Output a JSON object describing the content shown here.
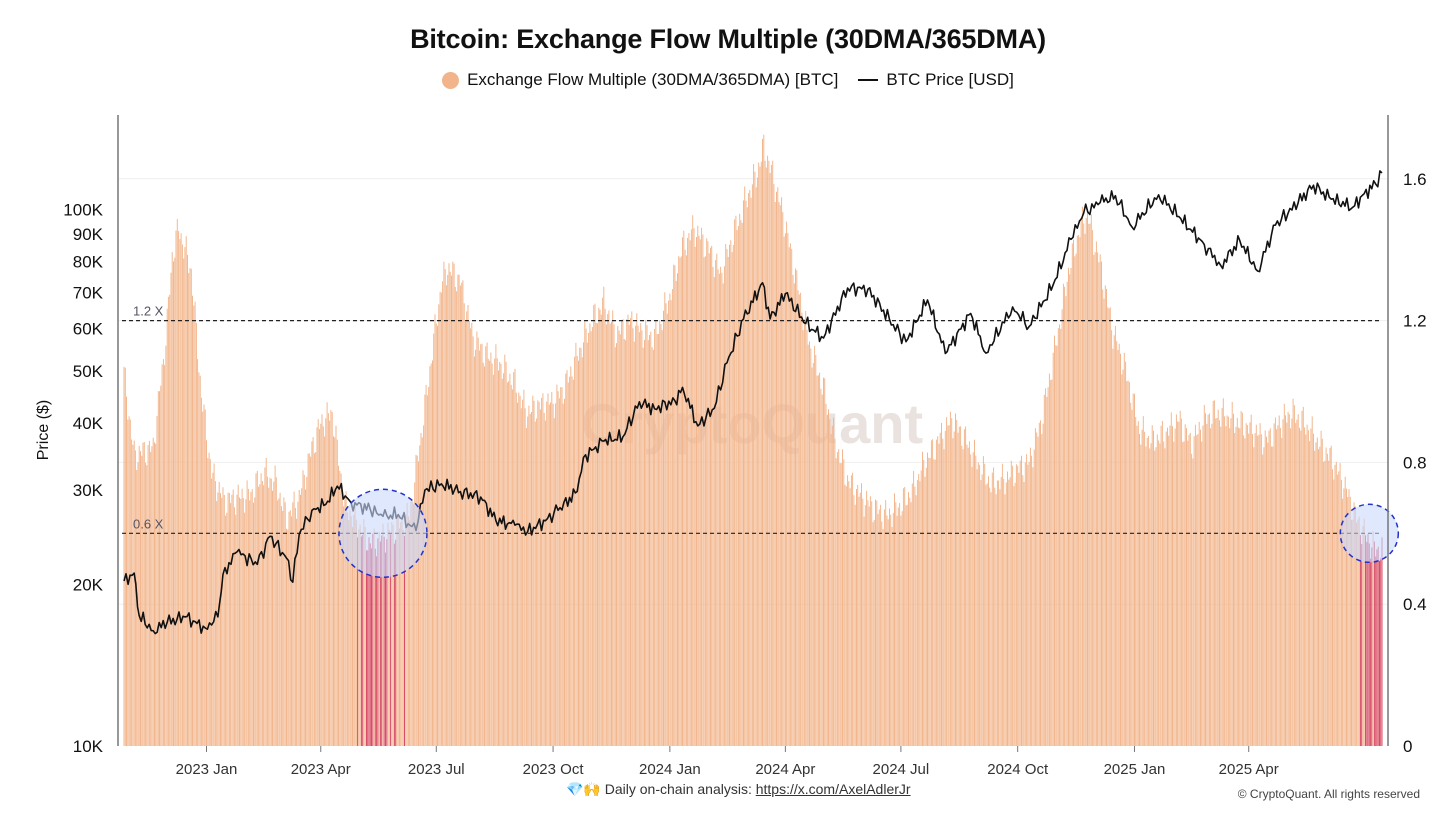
{
  "title": "Bitcoin: Exchange Flow Multiple (30DMA/365DMA)",
  "legend": {
    "flow_label": "Exchange Flow Multiple (30DMA/365DMA) [BTC]",
    "price_label": "BTC Price [USD]"
  },
  "footer": {
    "icons": "💎🙌",
    "text": "Daily on-chain analysis:",
    "link": "https://x.com/AxelAdlerJr"
  },
  "copyright": "© CryptoQuant. All rights reserved",
  "watermark": "CryptoQuant",
  "colors": {
    "bar": "#f2b48a",
    "bar_low": "#d6455e",
    "price": "#111111",
    "circle_fill": "#c9d8fb",
    "circle_stroke": "#2233cc"
  },
  "chart_data": {
    "type": "bar",
    "x_range": [
      "2022-10-28",
      "2025-07-15"
    ],
    "x_tick_labels": [
      {
        "label": "2023 Jan",
        "date": "2023-01-01"
      },
      {
        "label": "2023 Apr",
        "date": "2023-04-01"
      },
      {
        "label": "2023 Jul",
        "date": "2023-07-01"
      },
      {
        "label": "2023 Oct",
        "date": "2023-10-01"
      },
      {
        "label": "2024 Jan",
        "date": "2024-01-01"
      },
      {
        "label": "2024 Apr",
        "date": "2024-04-01"
      },
      {
        "label": "2024 Jul",
        "date": "2024-07-01"
      },
      {
        "label": "2024 Oct",
        "date": "2024-10-01"
      },
      {
        "label": "2025 Jan",
        "date": "2025-01-01"
      },
      {
        "label": "2025 Apr",
        "date": "2025-04-01"
      }
    ],
    "y_left": {
      "label": "Price ($)",
      "scale": "log",
      "range": [
        10000,
        150000
      ],
      "ticks": [
        10000,
        20000,
        30000,
        40000,
        50000,
        60000,
        70000,
        80000,
        90000,
        100000
      ],
      "tick_labels": [
        "10K",
        "20K",
        "30K",
        "40K",
        "50K",
        "60K",
        "70K",
        "80K",
        "90K",
        "100K"
      ]
    },
    "y_right": {
      "range": [
        0,
        1.78
      ],
      "ticks": [
        0,
        0.4,
        0.8,
        1.2,
        1.6
      ],
      "tick_labels": [
        "0",
        "0.4",
        "0.8",
        "1.2",
        "1.6"
      ]
    },
    "reference_lines": [
      {
        "value": 1.2,
        "label": "1.2 X"
      },
      {
        "value": 0.6,
        "label": "0.6 X"
      }
    ],
    "highlight_circles": [
      {
        "date": "2023-05-20",
        "value": 0.6
      },
      {
        "date": "2025-07-05",
        "value": 0.6
      }
    ],
    "series": [
      {
        "name": "Exchange Flow Multiple (30DMA/365DMA) [BTC]",
        "axis": "right",
        "type": "bar",
        "points": [
          [
            "2022-10-28",
            1.05
          ],
          [
            "2022-11-05",
            0.82
          ],
          [
            "2022-11-20",
            0.84
          ],
          [
            "2022-11-30",
            1.15
          ],
          [
            "2022-12-05",
            1.38
          ],
          [
            "2022-12-10",
            1.46
          ],
          [
            "2022-12-20",
            1.34
          ],
          [
            "2022-12-28",
            0.99
          ],
          [
            "2023-01-05",
            0.77
          ],
          [
            "2023-01-15",
            0.69
          ],
          [
            "2023-01-25",
            0.7
          ],
          [
            "2023-02-05",
            0.71
          ],
          [
            "2023-02-15",
            0.77
          ],
          [
            "2023-02-25",
            0.74
          ],
          [
            "2023-03-05",
            0.64
          ],
          [
            "2023-03-15",
            0.7
          ],
          [
            "2023-03-25",
            0.84
          ],
          [
            "2023-04-01",
            0.91
          ],
          [
            "2023-04-10",
            0.94
          ],
          [
            "2023-04-20",
            0.68
          ],
          [
            "2023-05-01",
            0.62
          ],
          [
            "2023-05-10",
            0.57
          ],
          [
            "2023-05-20",
            0.59
          ],
          [
            "2023-06-01",
            0.62
          ],
          [
            "2023-06-10",
            0.65
          ],
          [
            "2023-06-20",
            0.9
          ],
          [
            "2023-06-30",
            1.17
          ],
          [
            "2023-07-05",
            1.3
          ],
          [
            "2023-07-10",
            1.35
          ],
          [
            "2023-07-20",
            1.31
          ],
          [
            "2023-07-30",
            1.15
          ],
          [
            "2023-08-10",
            1.1
          ],
          [
            "2023-08-20",
            1.08
          ],
          [
            "2023-09-01",
            1.02
          ],
          [
            "2023-09-10",
            0.94
          ],
          [
            "2023-09-20",
            0.96
          ],
          [
            "2023-10-01",
            0.97
          ],
          [
            "2023-10-10",
            1.01
          ],
          [
            "2023-10-20",
            1.1
          ],
          [
            "2023-11-01",
            1.2
          ],
          [
            "2023-11-10",
            1.25
          ],
          [
            "2023-11-20",
            1.16
          ],
          [
            "2023-12-01",
            1.2
          ],
          [
            "2023-12-10",
            1.17
          ],
          [
            "2023-12-20",
            1.15
          ],
          [
            "2024-01-01",
            1.27
          ],
          [
            "2024-01-10",
            1.4
          ],
          [
            "2024-01-20",
            1.46
          ],
          [
            "2024-02-01",
            1.4
          ],
          [
            "2024-02-10",
            1.33
          ],
          [
            "2024-02-20",
            1.44
          ],
          [
            "2024-03-01",
            1.54
          ],
          [
            "2024-03-10",
            1.62
          ],
          [
            "2024-03-15",
            1.69
          ],
          [
            "2024-03-22",
            1.61
          ],
          [
            "2024-04-01",
            1.47
          ],
          [
            "2024-04-10",
            1.31
          ],
          [
            "2024-04-20",
            1.13
          ],
          [
            "2024-05-01",
            1.01
          ],
          [
            "2024-05-10",
            0.86
          ],
          [
            "2024-05-20",
            0.75
          ],
          [
            "2024-06-01",
            0.7
          ],
          [
            "2024-06-10",
            0.67
          ],
          [
            "2024-06-20",
            0.65
          ],
          [
            "2024-07-01",
            0.68
          ],
          [
            "2024-07-10",
            0.72
          ],
          [
            "2024-07-20",
            0.8
          ],
          [
            "2024-08-01",
            0.87
          ],
          [
            "2024-08-10",
            0.92
          ],
          [
            "2024-08-20",
            0.87
          ],
          [
            "2024-09-01",
            0.79
          ],
          [
            "2024-09-10",
            0.74
          ],
          [
            "2024-09-20",
            0.75
          ],
          [
            "2024-10-01",
            0.78
          ],
          [
            "2024-10-10",
            0.8
          ],
          [
            "2024-10-20",
            0.92
          ],
          [
            "2024-11-01",
            1.15
          ],
          [
            "2024-11-10",
            1.34
          ],
          [
            "2024-11-20",
            1.47
          ],
          [
            "2024-11-25",
            1.5
          ],
          [
            "2024-12-05",
            1.36
          ],
          [
            "2024-12-15",
            1.17
          ],
          [
            "2024-12-25",
            1.06
          ],
          [
            "2025-01-05",
            0.89
          ],
          [
            "2025-01-15",
            0.86
          ],
          [
            "2025-01-25",
            0.88
          ],
          [
            "2025-02-05",
            0.92
          ],
          [
            "2025-02-15",
            0.85
          ],
          [
            "2025-02-25",
            0.92
          ],
          [
            "2025-03-05",
            0.94
          ],
          [
            "2025-03-15",
            0.93
          ],
          [
            "2025-03-25",
            0.91
          ],
          [
            "2025-04-05",
            0.89
          ],
          [
            "2025-04-15",
            0.86
          ],
          [
            "2025-04-25",
            0.91
          ],
          [
            "2025-05-05",
            0.94
          ],
          [
            "2025-05-15",
            0.91
          ],
          [
            "2025-05-25",
            0.86
          ],
          [
            "2025-06-05",
            0.81
          ],
          [
            "2025-06-15",
            0.74
          ],
          [
            "2025-06-25",
            0.64
          ],
          [
            "2025-07-01",
            0.6
          ],
          [
            "2025-07-08",
            0.56
          ],
          [
            "2025-07-15",
            0.55
          ]
        ]
      },
      {
        "name": "BTC Price [USD]",
        "axis": "left",
        "type": "line",
        "points": [
          [
            "2022-10-28",
            20300
          ],
          [
            "2022-11-05",
            21000
          ],
          [
            "2022-11-09",
            17500
          ],
          [
            "2022-11-20",
            16400
          ],
          [
            "2022-12-01",
            17000
          ],
          [
            "2022-12-15",
            17400
          ],
          [
            "2022-12-31",
            16600
          ],
          [
            "2023-01-10",
            17400
          ],
          [
            "2023-01-14",
            20900
          ],
          [
            "2023-01-25",
            23000
          ],
          [
            "2023-02-10",
            21800
          ],
          [
            "2023-02-20",
            24600
          ],
          [
            "2023-03-05",
            22400
          ],
          [
            "2023-03-10",
            20200
          ],
          [
            "2023-03-15",
            24800
          ],
          [
            "2023-03-25",
            27500
          ],
          [
            "2023-04-05",
            28200
          ],
          [
            "2023-04-14",
            30500
          ],
          [
            "2023-04-25",
            28400
          ],
          [
            "2023-05-10",
            27600
          ],
          [
            "2023-05-20",
            26800
          ],
          [
            "2023-06-01",
            27000
          ],
          [
            "2023-06-15",
            25200
          ],
          [
            "2023-06-22",
            30000
          ],
          [
            "2023-07-05",
            30800
          ],
          [
            "2023-07-20",
            29800
          ],
          [
            "2023-08-05",
            29100
          ],
          [
            "2023-08-17",
            26300
          ],
          [
            "2023-09-01",
            25800
          ],
          [
            "2023-09-11",
            25100
          ],
          [
            "2023-09-25",
            26300
          ],
          [
            "2023-10-05",
            27500
          ],
          [
            "2023-10-20",
            29800
          ],
          [
            "2023-10-25",
            34500
          ],
          [
            "2023-11-10",
            37000
          ],
          [
            "2023-11-25",
            37700
          ],
          [
            "2023-12-08",
            43800
          ],
          [
            "2023-12-20",
            42500
          ],
          [
            "2024-01-05",
            44000
          ],
          [
            "2024-01-11",
            46600
          ],
          [
            "2024-01-23",
            39500
          ],
          [
            "2024-02-05",
            42600
          ],
          [
            "2024-02-15",
            51800
          ],
          [
            "2024-02-28",
            62500
          ],
          [
            "2024-03-14",
            73000
          ],
          [
            "2024-03-20",
            62500
          ],
          [
            "2024-04-01",
            69700
          ],
          [
            "2024-04-17",
            61300
          ],
          [
            "2024-05-01",
            57600
          ],
          [
            "2024-05-20",
            71400
          ],
          [
            "2024-06-05",
            71000
          ],
          [
            "2024-06-25",
            61000
          ],
          [
            "2024-07-05",
            56700
          ],
          [
            "2024-07-22",
            67800
          ],
          [
            "2024-08-05",
            53900
          ],
          [
            "2024-08-25",
            64000
          ],
          [
            "2024-09-06",
            54000
          ],
          [
            "2024-09-27",
            65800
          ],
          [
            "2024-10-10",
            60500
          ],
          [
            "2024-10-29",
            72400
          ],
          [
            "2024-11-12",
            88000
          ],
          [
            "2024-11-22",
            98500
          ],
          [
            "2024-12-05",
            103000
          ],
          [
            "2024-12-17",
            106100
          ],
          [
            "2024-12-30",
            92800
          ],
          [
            "2025-01-20",
            106500
          ],
          [
            "2025-02-05",
            97000
          ],
          [
            "2025-02-25",
            86000
          ],
          [
            "2025-03-10",
            78600
          ],
          [
            "2025-03-25",
            87500
          ],
          [
            "2025-04-08",
            76800
          ],
          [
            "2025-04-22",
            93500
          ],
          [
            "2025-05-10",
            103000
          ],
          [
            "2025-05-22",
            111000
          ],
          [
            "2025-06-05",
            104500
          ],
          [
            "2025-06-22",
            101000
          ],
          [
            "2025-07-01",
            107000
          ],
          [
            "2025-07-10",
            111500
          ],
          [
            "2025-07-15",
            117000
          ]
        ]
      }
    ]
  }
}
